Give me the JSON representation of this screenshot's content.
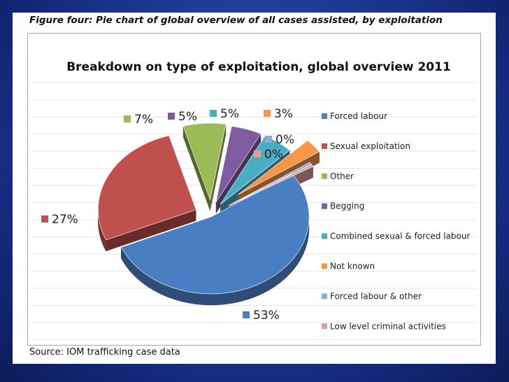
{
  "figure_caption": "Figure four: Pie chart of global overview of all cases assisted, by exploitation",
  "source_note": "Source: IOM trafficking case data",
  "chart_data": {
    "type": "pie",
    "title": "Breakdown on type of exploitation, global overview 2011",
    "categories": [
      "Forced labour",
      "Sexual exploitation",
      "Other",
      "Begging",
      "Combined sexual & forced labour",
      "Not known",
      "Forced labour & other",
      "Low level criminal activities"
    ],
    "values": [
      53,
      27,
      7,
      5,
      5,
      3,
      0,
      0
    ],
    "data_labels": [
      "53%",
      "27%",
      "7%",
      "5%",
      "5%",
      "3%",
      "0%",
      "0%"
    ],
    "colors": [
      "#4a7ec3",
      "#c0504d",
      "#9bbb59",
      "#7f5c9f",
      "#4bacc6",
      "#f79646",
      "#8ea9db",
      "#e39a9a"
    ],
    "legend_position": "right",
    "exploded": true,
    "three_d": true,
    "grid": true
  }
}
